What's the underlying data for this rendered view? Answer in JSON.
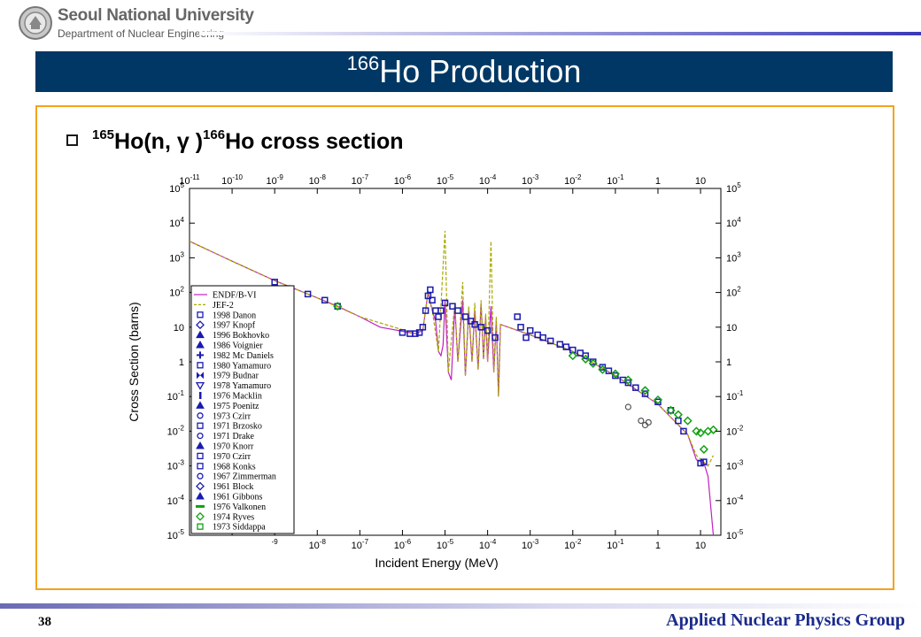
{
  "header": {
    "university": "Seoul National University",
    "department": "Department of Nuclear Engineering",
    "logo_icon": "university-seal-icon"
  },
  "slide": {
    "title_mass": "166",
    "title_text": "Ho Production",
    "subtitle_mass1": "165",
    "subtitle_part1": "Ho(n, γ )",
    "subtitle_mass2": "166",
    "subtitle_part2": "Ho cross section"
  },
  "footer": {
    "page_number": "38",
    "group": "Applied Nuclear Physics Group"
  },
  "colors": {
    "title_bar": "#003764",
    "frame": "#f4a21c",
    "endf": "#c020c0",
    "jef": "#a8a800",
    "data_blue": "#1a1ab0",
    "data_green": "#10a010"
  },
  "chart_data": {
    "type": "scatter",
    "title": "",
    "xlabel": "Incident Energy (MeV)",
    "ylabel": "Cross Section (barns)",
    "xscale": "log",
    "yscale": "log",
    "xlim": [
      1e-11,
      30
    ],
    "ylim": [
      1e-05,
      100000.0
    ],
    "grid": false,
    "legend_position": "left",
    "x_ticks": [
      {
        "v": 1e-11,
        "base": "10",
        "exp": "-11"
      },
      {
        "v": 1e-10,
        "base": "10",
        "exp": "-10"
      },
      {
        "v": 1e-09,
        "base": "10",
        "exp": "-9"
      },
      {
        "v": 1e-08,
        "base": "10",
        "exp": "-8"
      },
      {
        "v": 1e-07,
        "base": "10",
        "exp": "-7"
      },
      {
        "v": 1e-06,
        "base": "10",
        "exp": "-6"
      },
      {
        "v": 1e-05,
        "base": "10",
        "exp": "-5"
      },
      {
        "v": 0.0001,
        "base": "10",
        "exp": "-4"
      },
      {
        "v": 0.001,
        "base": "10",
        "exp": "-3"
      },
      {
        "v": 0.01,
        "base": "10",
        "exp": "-2"
      },
      {
        "v": 0.1,
        "base": "10",
        "exp": "-1"
      },
      {
        "v": 1,
        "base": "1",
        "exp": ""
      },
      {
        "v": 10,
        "base": "10",
        "exp": ""
      }
    ],
    "x_ticks_bottom": [
      {
        "v": 1e-09,
        "base": "",
        "exp": "-9"
      },
      {
        "v": 1e-08,
        "base": "10",
        "exp": "-8"
      },
      {
        "v": 1e-07,
        "base": "10",
        "exp": "-7"
      },
      {
        "v": 1e-06,
        "base": "10",
        "exp": "-6"
      },
      {
        "v": 1e-05,
        "base": "10",
        "exp": "-5"
      },
      {
        "v": 0.0001,
        "base": "10",
        "exp": "-4"
      },
      {
        "v": 0.001,
        "base": "10",
        "exp": "-3"
      },
      {
        "v": 0.01,
        "base": "10",
        "exp": "-2"
      },
      {
        "v": 0.1,
        "base": "10",
        "exp": "-1"
      },
      {
        "v": 1,
        "base": "1",
        "exp": ""
      },
      {
        "v": 10,
        "base": "10",
        "exp": ""
      }
    ],
    "y_ticks": [
      {
        "v": 100000.0,
        "base": "10",
        "exp": "5"
      },
      {
        "v": 10000.0,
        "base": "10",
        "exp": "4"
      },
      {
        "v": 1000.0,
        "base": "10",
        "exp": "3"
      },
      {
        "v": 100.0,
        "base": "10",
        "exp": "2"
      },
      {
        "v": 10,
        "base": "10",
        "exp": ""
      },
      {
        "v": 1,
        "base": "1",
        "exp": ""
      },
      {
        "v": 0.1,
        "base": "10",
        "exp": "-1"
      },
      {
        "v": 0.01,
        "base": "10",
        "exp": "-2"
      },
      {
        "v": 0.001,
        "base": "10",
        "exp": "-3"
      },
      {
        "v": 0.0001,
        "base": "10",
        "exp": "-4"
      },
      {
        "v": 1e-05,
        "base": "10",
        "exp": "-5"
      }
    ],
    "legend": [
      {
        "label": "ENDF/B-VI",
        "kind": "line",
        "color": "#c020c0"
      },
      {
        "label": "JEF-2",
        "kind": "dash",
        "color": "#a8a800"
      },
      {
        "label": "1998 Danon",
        "kind": "square",
        "color": "#1a1ab0"
      },
      {
        "label": "1997 Knopf",
        "kind": "diamond",
        "color": "#1a1ab0"
      },
      {
        "label": "1996 Bokhovko",
        "kind": "triangle",
        "color": "#1a1ab0"
      },
      {
        "label": "1986 Voignier",
        "kind": "triangle",
        "color": "#1a1ab0"
      },
      {
        "label": "1982 Mc Daniels",
        "kind": "plus",
        "color": "#1a1ab0"
      },
      {
        "label": "1980 Yamamuro",
        "kind": "square",
        "color": "#1a1ab0"
      },
      {
        "label": "1979 Budnar",
        "kind": "bowtie",
        "color": "#1a1ab0"
      },
      {
        "label": "1978 Yamamuro",
        "kind": "triangle-down",
        "color": "#1a1ab0"
      },
      {
        "label": "1976 Macklin",
        "kind": "bar",
        "color": "#1a1ab0"
      },
      {
        "label": "1975 Poenitz",
        "kind": "triangle",
        "color": "#1a1ab0"
      },
      {
        "label": "1973 Czirr",
        "kind": "circle",
        "color": "#1a1ab0"
      },
      {
        "label": "1971 Brzosko",
        "kind": "square",
        "color": "#1a1ab0"
      },
      {
        "label": "1971 Drake",
        "kind": "circle",
        "color": "#1a1ab0"
      },
      {
        "label": "1970 Knorr",
        "kind": "triangle",
        "color": "#1a1ab0"
      },
      {
        "label": "1970 Czirr",
        "kind": "square",
        "color": "#1a1ab0"
      },
      {
        "label": "1968 Konks",
        "kind": "square",
        "color": "#1a1ab0"
      },
      {
        "label": "1967 Zimmerman",
        "kind": "circle",
        "color": "#1a1ab0"
      },
      {
        "label": "1961 Block",
        "kind": "diamond",
        "color": "#1a1ab0"
      },
      {
        "label": "1961 Gibbons",
        "kind": "triangle",
        "color": "#1a1ab0"
      },
      {
        "label": "1976 Valkonen",
        "kind": "bar-h",
        "color": "#10a010"
      },
      {
        "label": "1974 Ryves",
        "kind": "diamond",
        "color": "#10a010"
      },
      {
        "label": "1973 Siddappa",
        "kind": "square",
        "color": "#10a010"
      }
    ],
    "series": [
      {
        "name": "ENDF/B-VI",
        "kind": "line",
        "points": [
          [
            1e-11,
            3000
          ],
          [
            1e-10,
            800
          ],
          [
            1e-09,
            220
          ],
          [
            1e-08,
            70
          ],
          [
            3e-08,
            40
          ],
          [
            1e-07,
            20
          ],
          [
            3e-07,
            10
          ],
          [
            2e-06,
            6.5
          ],
          [
            3e-06,
            8
          ],
          [
            4e-06,
            100
          ],
          [
            5e-06,
            30
          ],
          [
            6e-06,
            15
          ],
          [
            7e-06,
            2
          ],
          [
            8e-06,
            1.5
          ],
          [
            9e-06,
            3
          ],
          [
            1e-05,
            60
          ],
          [
            1.2e-05,
            0.5
          ],
          [
            1.4e-05,
            0.3
          ],
          [
            1.7e-05,
            40
          ],
          [
            2e-05,
            1
          ],
          [
            2.6e-05,
            60
          ],
          [
            3e-05,
            0.4
          ],
          [
            3.6e-05,
            30
          ],
          [
            4.3e-05,
            1
          ],
          [
            5e-05,
            30
          ],
          [
            6e-05,
            0.6
          ],
          [
            7e-05,
            50
          ],
          [
            8e-05,
            1.2
          ],
          [
            9e-05,
            20
          ],
          [
            0.0001,
            1
          ],
          [
            0.00012,
            40
          ],
          [
            0.00014,
            0.5
          ],
          [
            0.00016,
            15
          ],
          [
            0.00018,
            0.1
          ],
          [
            0.0002,
            12
          ],
          [
            0.001,
            6
          ],
          [
            0.01,
            2
          ],
          [
            0.1,
            0.4
          ],
          [
            1,
            0.06
          ],
          [
            5,
            0.008
          ],
          [
            8,
            0.0015
          ],
          [
            12,
            0.0012
          ],
          [
            15,
            0.0005
          ],
          [
            20,
            1e-05
          ]
        ]
      },
      {
        "name": "JEF-2",
        "kind": "dash",
        "points": [
          [
            1e-11,
            3000
          ],
          [
            1e-10,
            800
          ],
          [
            1e-09,
            220
          ],
          [
            1e-08,
            70
          ],
          [
            1e-07,
            20
          ],
          [
            2e-06,
            6.5
          ],
          [
            3e-06,
            8
          ],
          [
            4e-06,
            110
          ],
          [
            5e-06,
            30
          ],
          [
            7e-06,
            2
          ],
          [
            1e-05,
            6000
          ],
          [
            1.2e-05,
            0.5
          ],
          [
            1.7e-05,
            50
          ],
          [
            2e-05,
            1
          ],
          [
            2.6e-05,
            200
          ],
          [
            3e-05,
            0.4
          ],
          [
            3.6e-05,
            40
          ],
          [
            4.3e-05,
            1
          ],
          [
            5e-05,
            50
          ],
          [
            6e-05,
            0.6
          ],
          [
            7e-05,
            60
          ],
          [
            8e-05,
            1.2
          ],
          [
            9e-05,
            25
          ],
          [
            0.0001,
            1
          ],
          [
            0.00012,
            3000
          ],
          [
            0.00014,
            0.5
          ],
          [
            0.00016,
            20
          ],
          [
            0.00018,
            0.1
          ],
          [
            0.0002,
            12
          ],
          [
            0.001,
            6
          ],
          [
            0.01,
            2
          ],
          [
            0.1,
            0.4
          ],
          [
            1,
            0.06
          ],
          [
            5,
            0.008
          ],
          [
            8,
            0.002
          ],
          [
            15,
            0.001
          ],
          [
            20,
            0.002
          ]
        ]
      },
      {
        "name": "Measurements (blue)",
        "kind": "markers-blue",
        "points": [
          [
            1e-09,
            200
          ],
          [
            2e-09,
            130
          ],
          [
            6e-09,
            90
          ],
          [
            1.5e-08,
            60
          ],
          [
            3e-08,
            40
          ],
          [
            1e-06,
            7
          ],
          [
            1.5e-06,
            6.5
          ],
          [
            2e-06,
            6.5
          ],
          [
            2.5e-06,
            7
          ],
          [
            3e-06,
            10
          ],
          [
            3.5e-06,
            30
          ],
          [
            4e-06,
            80
          ],
          [
            4.5e-06,
            120
          ],
          [
            5e-06,
            60
          ],
          [
            6e-06,
            30
          ],
          [
            7e-06,
            20
          ],
          [
            8e-06,
            30
          ],
          [
            1e-05,
            50
          ],
          [
            1.5e-05,
            40
          ],
          [
            2e-05,
            30
          ],
          [
            3e-05,
            20
          ],
          [
            4e-05,
            15
          ],
          [
            5e-05,
            12
          ],
          [
            7e-05,
            10
          ],
          [
            0.0001,
            8
          ],
          [
            0.00015,
            5
          ],
          [
            0.0005,
            20
          ],
          [
            0.0006,
            10
          ],
          [
            0.0008,
            5
          ],
          [
            0.001,
            8
          ],
          [
            0.0015,
            6
          ],
          [
            0.002,
            5
          ],
          [
            0.003,
            4
          ],
          [
            0.005,
            3.2
          ],
          [
            0.007,
            2.7
          ],
          [
            0.01,
            2.2
          ],
          [
            0.015,
            1.8
          ],
          [
            0.02,
            1.5
          ],
          [
            0.03,
            1
          ],
          [
            0.05,
            0.7
          ],
          [
            0.07,
            0.55
          ],
          [
            0.1,
            0.4
          ],
          [
            0.15,
            0.3
          ],
          [
            0.2,
            0.25
          ],
          [
            0.3,
            0.18
          ],
          [
            0.5,
            0.12
          ],
          [
            1,
            0.07
          ],
          [
            2,
            0.04
          ],
          [
            3,
            0.02
          ],
          [
            4,
            0.01
          ],
          [
            10,
            0.0012
          ],
          [
            12,
            0.0013
          ]
        ]
      },
      {
        "name": "Measurements (grey)",
        "kind": "markers-grey",
        "points": [
          [
            0.2,
            0.05
          ],
          [
            0.4,
            0.02
          ],
          [
            0.5,
            0.015
          ],
          [
            0.6,
            0.018
          ]
        ]
      },
      {
        "name": "Measurements (green)",
        "kind": "markers-green",
        "points": [
          [
            3e-08,
            40
          ],
          [
            0.01,
            1.5
          ],
          [
            0.02,
            1.2
          ],
          [
            0.03,
            0.9
          ],
          [
            0.05,
            0.6
          ],
          [
            0.1,
            0.45
          ],
          [
            0.2,
            0.3
          ],
          [
            0.5,
            0.15
          ],
          [
            1,
            0.08
          ],
          [
            2,
            0.04
          ],
          [
            3,
            0.03
          ],
          [
            5,
            0.02
          ],
          [
            8,
            0.01
          ],
          [
            10,
            0.009
          ],
          [
            15,
            0.01
          ],
          [
            20,
            0.011
          ],
          [
            12,
            0.003
          ]
        ]
      }
    ]
  }
}
